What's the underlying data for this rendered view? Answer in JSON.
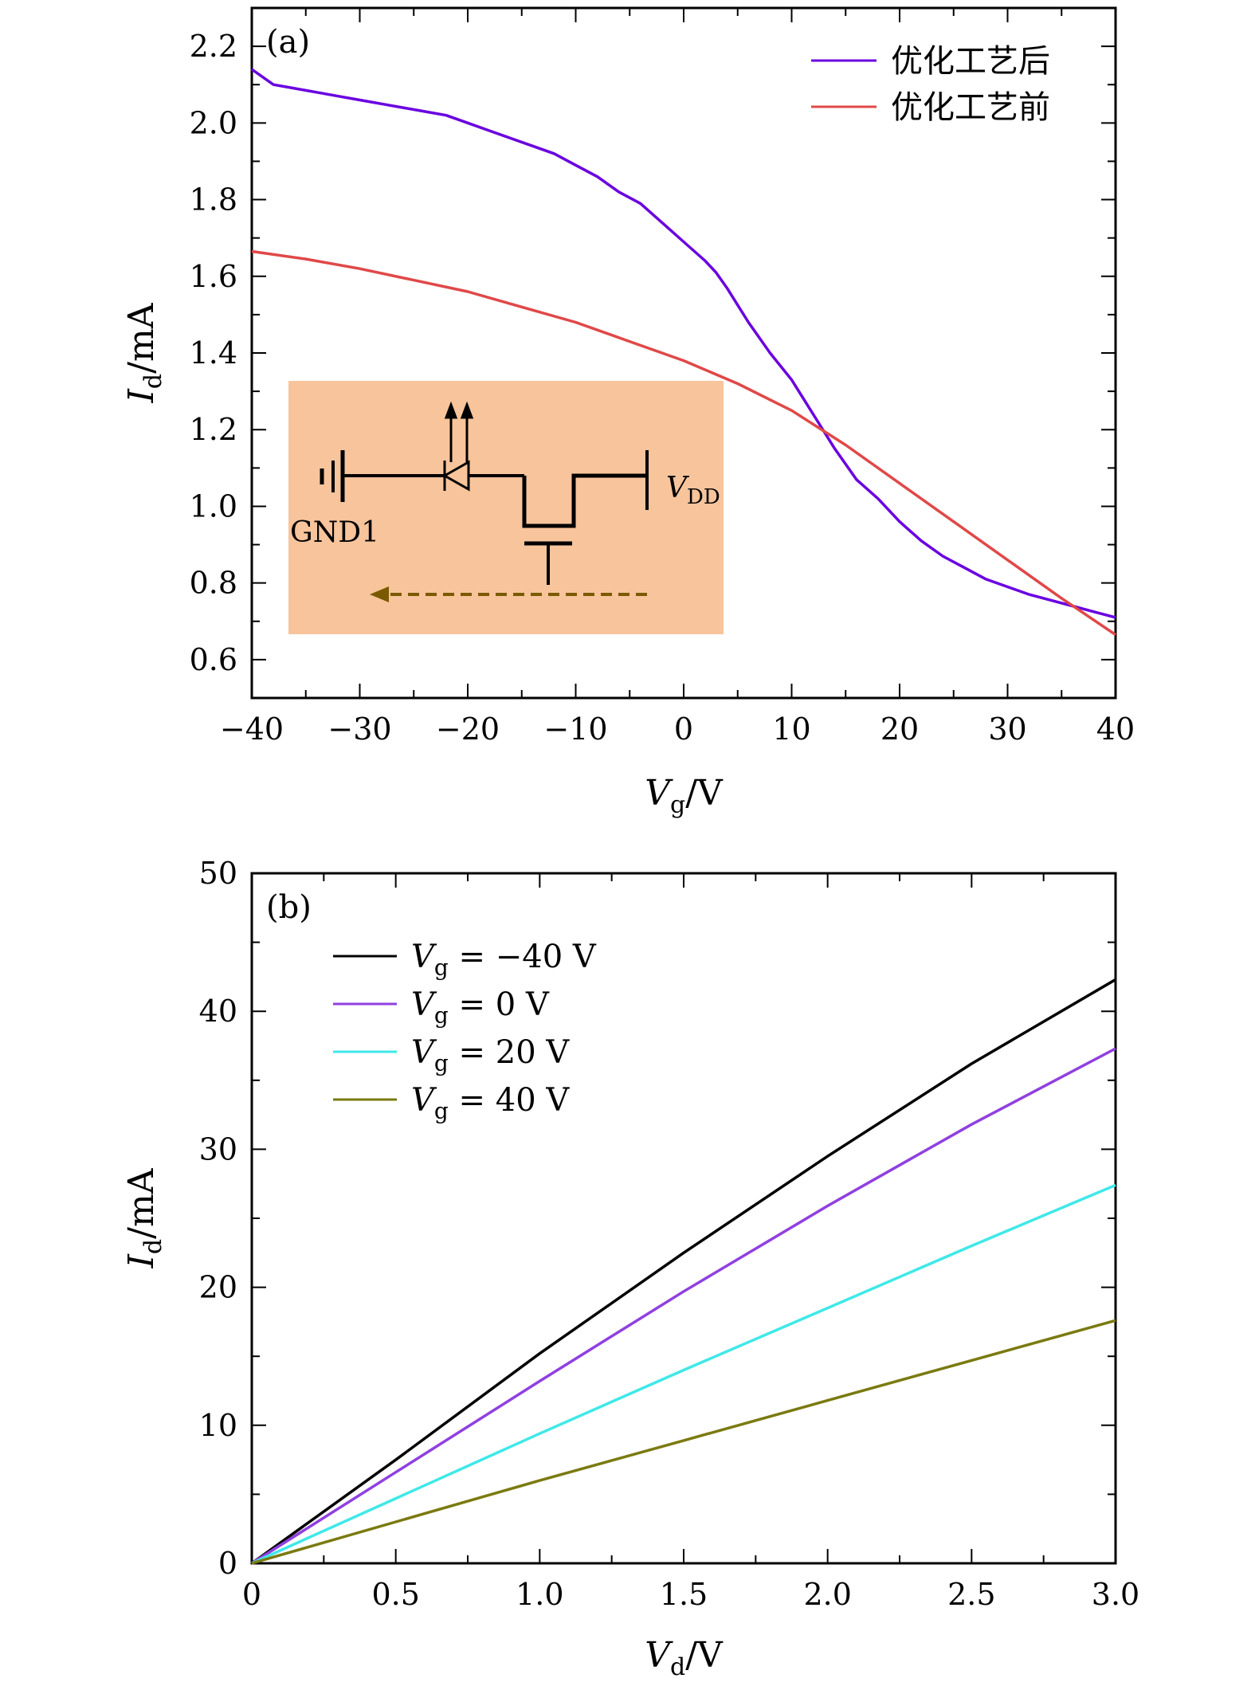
{
  "chart_data": [
    {
      "type": "line",
      "panel_label": "(a)",
      "xlabel": "V",
      "xlabel_sub": "g",
      "xlabel_unit": "/V",
      "ylabel": "I",
      "ylabel_sub": "d",
      "ylabel_unit": "/mA",
      "xlim": [
        -40,
        40
      ],
      "ylim": [
        0.5,
        2.3
      ],
      "xticks": [
        -40,
        -30,
        -20,
        -10,
        0,
        10,
        20,
        30,
        40
      ],
      "xtick_labels": [
        "−40",
        "−30",
        "−20",
        "−10",
        "0",
        "10",
        "20",
        "30",
        "40"
      ],
      "yticks": [
        0.6,
        0.8,
        1.0,
        1.2,
        1.4,
        1.6,
        1.8,
        2.0,
        2.2
      ],
      "ytick_labels": [
        "0.6",
        "0.8",
        "1.0",
        "1.2",
        "1.4",
        "1.6",
        "1.8",
        "2.0",
        "2.2"
      ],
      "grid": false,
      "legend_position": "top-right",
      "series": [
        {
          "name": "优化工艺后",
          "color": "#6a00e0",
          "x": [
            -40,
            -38,
            -36,
            -34,
            -32,
            -30,
            -28,
            -26,
            -24,
            -22,
            -20,
            -18,
            -16,
            -14,
            -12,
            -10,
            -8,
            -6,
            -4,
            -2,
            0,
            2,
            3,
            4,
            6,
            8,
            10,
            12,
            14,
            16,
            18,
            20,
            22,
            24,
            26,
            28,
            30,
            32,
            34,
            36,
            38,
            40
          ],
          "y": [
            2.14,
            2.1,
            2.09,
            2.08,
            2.07,
            2.06,
            2.05,
            2.04,
            2.03,
            2.02,
            2.0,
            1.98,
            1.96,
            1.94,
            1.92,
            1.89,
            1.86,
            1.82,
            1.79,
            1.74,
            1.69,
            1.64,
            1.61,
            1.57,
            1.48,
            1.4,
            1.33,
            1.24,
            1.15,
            1.07,
            1.02,
            0.96,
            0.91,
            0.87,
            0.84,
            0.81,
            0.79,
            0.77,
            0.755,
            0.74,
            0.725,
            0.71
          ]
        },
        {
          "name": "优化工艺前",
          "color": "#e04848",
          "x": [
            -40,
            -35,
            -30,
            -25,
            -20,
            -15,
            -10,
            -5,
            0,
            5,
            10,
            15,
            20,
            25,
            30,
            35,
            40
          ],
          "y": [
            1.665,
            1.645,
            1.62,
            1.59,
            1.56,
            1.52,
            1.48,
            1.43,
            1.38,
            1.32,
            1.25,
            1.16,
            1.06,
            0.96,
            0.86,
            0.76,
            0.665
          ]
        }
      ],
      "inset": {
        "labels": [
          "GND1",
          "V",
          "DD"
        ]
      }
    },
    {
      "type": "line",
      "panel_label": "(b)",
      "xlabel": "V",
      "xlabel_sub": "d",
      "xlabel_unit": "/V",
      "ylabel": "I",
      "ylabel_sub": "d",
      "ylabel_unit": "/mA",
      "xlim": [
        0,
        3.0
      ],
      "ylim": [
        0,
        50
      ],
      "xticks": [
        0,
        0.5,
        1.0,
        1.5,
        2.0,
        2.5,
        3.0
      ],
      "xtick_labels": [
        "0",
        "0.5",
        "1.0",
        "1.5",
        "2.0",
        "2.5",
        "3.0"
      ],
      "yticks": [
        0,
        10,
        20,
        30,
        40,
        50
      ],
      "ytick_labels": [
        "0",
        "10",
        "20",
        "30",
        "40",
        "50"
      ],
      "grid": false,
      "legend_position": "top-left",
      "series": [
        {
          "name_main": "V",
          "name_sub": "g",
          "name_rest": " = −40 V",
          "color": "#000000",
          "x": [
            0,
            0.5,
            1.0,
            1.5,
            2.0,
            2.5,
            3.0
          ],
          "y": [
            0,
            7.5,
            15.2,
            22.5,
            29.5,
            36.2,
            42.3
          ]
        },
        {
          "name_main": "V",
          "name_sub": "g",
          "name_rest": " = 0 V",
          "color": "#9040e0",
          "x": [
            0,
            0.5,
            1.0,
            1.5,
            2.0,
            2.5,
            3.0
          ],
          "y": [
            0,
            6.6,
            13.2,
            19.7,
            25.9,
            31.8,
            37.3
          ]
        },
        {
          "name_main": "V",
          "name_sub": "g",
          "name_rest": " = 20 V",
          "color": "#40e8e8",
          "x": [
            0,
            0.5,
            1.0,
            1.5,
            2.0,
            2.5,
            3.0
          ],
          "y": [
            0,
            4.7,
            9.4,
            14.0,
            18.5,
            23.0,
            27.4
          ]
        },
        {
          "name_main": "V",
          "name_sub": "g",
          "name_rest": " = 40 V",
          "color": "#7a7a10",
          "x": [
            0,
            0.5,
            1.0,
            1.5,
            2.0,
            2.5,
            3.0
          ],
          "y": [
            0,
            3.0,
            6.0,
            8.9,
            11.8,
            14.7,
            17.6
          ]
        }
      ]
    }
  ]
}
